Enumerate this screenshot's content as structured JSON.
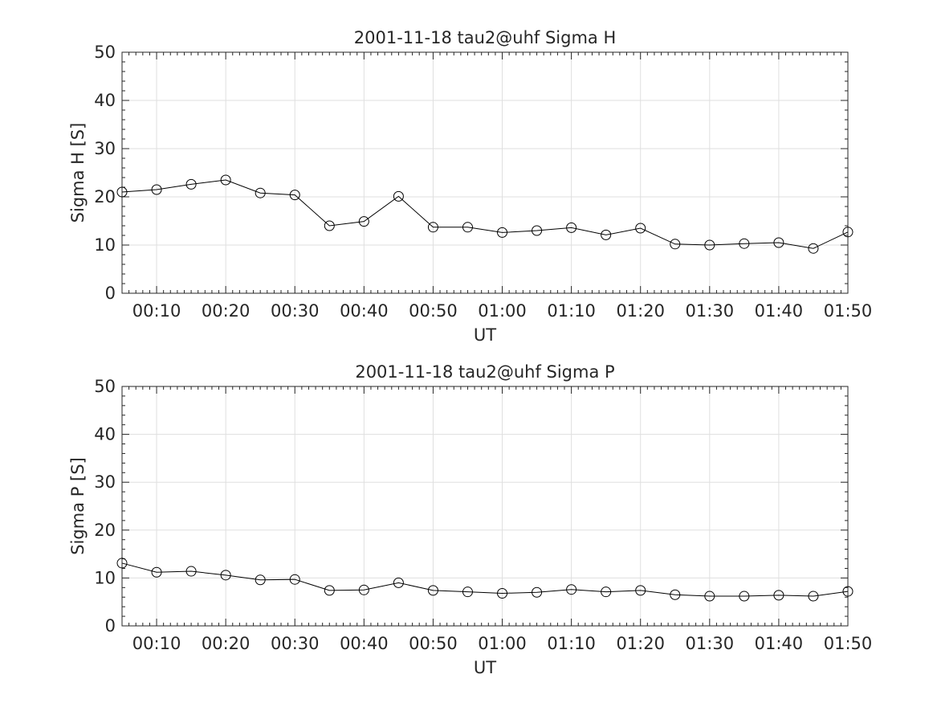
{
  "chart_data": [
    {
      "type": "line",
      "title": "2001-11-18  tau2@uhf Sigma H",
      "xlabel": "UT",
      "ylabel": "Sigma H [S]",
      "xlim": [
        "00:05",
        "01:50"
      ],
      "ylim": [
        0,
        50
      ],
      "x_ticks": [
        "00:10",
        "00:20",
        "00:30",
        "00:40",
        "00:50",
        "01:00",
        "01:10",
        "01:20",
        "01:30",
        "01:40",
        "01:50"
      ],
      "y_ticks": [
        0,
        10,
        20,
        30,
        40,
        50
      ],
      "grid": true,
      "marker": "circle",
      "color": "#000000",
      "x": [
        "00:05",
        "00:10",
        "00:15",
        "00:20",
        "00:25",
        "00:30",
        "00:35",
        "00:40",
        "00:45",
        "00:50",
        "00:55",
        "01:00",
        "01:05",
        "01:10",
        "01:15",
        "01:20",
        "01:25",
        "01:30",
        "01:35",
        "01:40",
        "01:45",
        "01:50"
      ],
      "values": [
        21.0,
        21.5,
        22.6,
        23.5,
        20.8,
        20.4,
        14.0,
        14.9,
        20.1,
        13.7,
        13.7,
        12.6,
        13.0,
        13.6,
        12.1,
        13.5,
        10.2,
        10.0,
        10.3,
        10.5,
        9.3,
        12.7
      ]
    },
    {
      "type": "line",
      "title": "2001-11-18  tau2@uhf Sigma P",
      "xlabel": "UT",
      "ylabel": "Sigma P [S]",
      "xlim": [
        "00:05",
        "01:50"
      ],
      "ylim": [
        0,
        50
      ],
      "x_ticks": [
        "00:10",
        "00:20",
        "00:30",
        "00:40",
        "00:50",
        "01:00",
        "01:10",
        "01:20",
        "01:30",
        "01:40",
        "01:50"
      ],
      "y_ticks": [
        0,
        10,
        20,
        30,
        40,
        50
      ],
      "grid": true,
      "marker": "circle",
      "color": "#000000",
      "x": [
        "00:05",
        "00:10",
        "00:15",
        "00:20",
        "00:25",
        "00:30",
        "00:35",
        "00:40",
        "00:45",
        "00:50",
        "00:55",
        "01:00",
        "01:05",
        "01:10",
        "01:15",
        "01:20",
        "01:25",
        "01:30",
        "01:35",
        "01:40",
        "01:45",
        "01:50"
      ],
      "values": [
        13.1,
        11.2,
        11.4,
        10.6,
        9.6,
        9.7,
        7.4,
        7.5,
        9.0,
        7.4,
        7.1,
        6.8,
        7.0,
        7.6,
        7.1,
        7.4,
        6.5,
        6.2,
        6.2,
        6.4,
        6.2,
        7.2
      ]
    }
  ]
}
